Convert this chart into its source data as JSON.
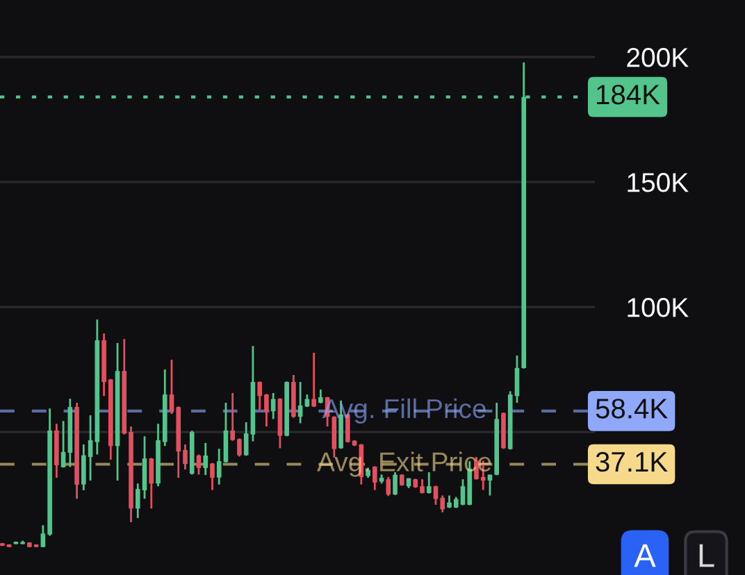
{
  "chart_data": {
    "type": "candlestick",
    "categories": [
      null,
      null,
      null,
      null,
      null,
      null,
      null,
      null,
      null,
      null,
      null,
      null,
      null,
      null,
      null,
      null,
      null,
      null,
      null,
      null,
      null,
      null,
      null,
      null,
      null,
      null,
      null,
      null,
      null,
      null,
      null,
      null,
      null,
      null,
      null,
      null,
      null,
      null,
      null,
      null,
      null,
      null,
      null,
      null,
      null,
      null,
      null,
      null,
      null,
      null,
      null,
      null,
      null,
      null,
      null,
      null,
      null,
      null,
      null,
      null,
      null,
      null,
      null,
      null,
      null,
      null,
      null,
      null,
      null,
      null,
      null,
      null,
      null,
      null,
      null,
      null,
      null,
      null
    ],
    "ohlc": [
      [
        5.5,
        5.6,
        4.4,
        4.5
      ],
      [
        5,
        5.1,
        3.9,
        4
      ],
      [
        5.2,
        6.2,
        5.1,
        6.1
      ],
      [
        5.2,
        6.5,
        5.1,
        6
      ],
      [
        5.8,
        5.9,
        3.9,
        4
      ],
      [
        5,
        5.1,
        3.9,
        4
      ],
      [
        4,
        12.7,
        3.9,
        9.4
      ],
      [
        9,
        59.4,
        8.5,
        50.6
      ],
      [
        50.6,
        53.3,
        31.7,
        36.7
      ],
      [
        35.9,
        54.4,
        35.8,
        42
      ],
      [
        41.7,
        63.3,
        36,
        60
      ],
      [
        60,
        61.7,
        23.3,
        28.9
      ],
      [
        29,
        45,
        26.7,
        40.7
      ],
      [
        40,
        56.7,
        30.6,
        46.7
      ],
      [
        46,
        95,
        41,
        86.7
      ],
      [
        86.7,
        89.4,
        64.4,
        70
      ],
      [
        71,
        71.2,
        38.9,
        44.4
      ],
      [
        44.4,
        85.6,
        30.6,
        74.4
      ],
      [
        74.4,
        87.2,
        49,
        49.4
      ],
      [
        50,
        52.2,
        13.9,
        19.4
      ],
      [
        19.4,
        29.4,
        15.6,
        27.2
      ],
      [
        26.7,
        48.3,
        23.3,
        39.4
      ],
      [
        39.4,
        39.6,
        19.4,
        29.4
      ],
      [
        29.4,
        53.3,
        28.3,
        46.7
      ],
      [
        46,
        75,
        44.4,
        65
      ],
      [
        65,
        78.9,
        57.2,
        58.3
      ],
      [
        60,
        60.2,
        31.7,
        42.2
      ],
      [
        42.8,
        45,
        35,
        37.2
      ],
      [
        33.3,
        50.5,
        33,
        50
      ],
      [
        40.6,
        41,
        33,
        35.6
      ],
      [
        35.6,
        45.6,
        32.8,
        40.6
      ],
      [
        37.4,
        37.6,
        26.8,
        31.7
      ],
      [
        31.8,
        43.3,
        29,
        38.3
      ],
      [
        38,
        61.7,
        37.8,
        50.6
      ],
      [
        50.6,
        65.6,
        46.5,
        46.8
      ],
      [
        47.2,
        47.4,
        40.2,
        40.7
      ],
      [
        40.7,
        53.9,
        40.5,
        49.4
      ],
      [
        49,
        84.4,
        46.3,
        70
      ],
      [
        70,
        70.2,
        58.9,
        64.4
      ],
      [
        65,
        65.2,
        52.2,
        58.3
      ],
      [
        58.3,
        65.6,
        55.2,
        63.2
      ],
      [
        63.3,
        63.5,
        43.5,
        48.5
      ],
      [
        48.5,
        70.2,
        48.3,
        70
      ],
      [
        70,
        72.8,
        55.7,
        56.1
      ],
      [
        56.1,
        70,
        53.5,
        60.6
      ],
      [
        60.2,
        65,
        60,
        63.2
      ],
      [
        63.2,
        81.7,
        60,
        60.2
      ],
      [
        61.7,
        67,
        61.5,
        63.9
      ],
      [
        63.9,
        64,
        52.2,
        56.1
      ],
      [
        56.1,
        56.3,
        39.8,
        43.2
      ],
      [
        43.5,
        62.6,
        43.3,
        57
      ],
      [
        57,
        57.2,
        45.8,
        46
      ],
      [
        46.5,
        46.7,
        44.4,
        44.6
      ],
      [
        45,
        45.2,
        29,
        32
      ],
      [
        32.4,
        35.7,
        31.7,
        34.8
      ],
      [
        36.1,
        36.3,
        26.8,
        29.8
      ],
      [
        30.2,
        33,
        29.4,
        31.7
      ],
      [
        31.1,
        32,
        24.4,
        25
      ],
      [
        25,
        33.9,
        24.8,
        32.9
      ],
      [
        32.9,
        33.1,
        28.5,
        28.7
      ],
      [
        28.3,
        31.5,
        27.6,
        31.5
      ],
      [
        31.1,
        31.3,
        27.7,
        27.9
      ],
      [
        28.3,
        31.1,
        25.4,
        25.6
      ],
      [
        25.6,
        33.9,
        25.4,
        28.3
      ],
      [
        28.3,
        28.5,
        20.9,
        23.2
      ],
      [
        23.7,
        24.6,
        17.9,
        19.1
      ],
      [
        19.8,
        24.6,
        19.6,
        21.8
      ],
      [
        19.8,
        24,
        19.6,
        23.2
      ],
      [
        20.9,
        31.1,
        20.7,
        28.3
      ],
      [
        20.9,
        38.3,
        20.7,
        35.4
      ],
      [
        38.5,
        40,
        31,
        31.1
      ],
      [
        32,
        38.5,
        26.8,
        30.6
      ],
      [
        30.6,
        33,
        24.6,
        32.9
      ],
      [
        32.9,
        61.7,
        32.7,
        55.2
      ],
      [
        57.6,
        57.8,
        43.3,
        43.5
      ],
      [
        43.2,
        66.3,
        43,
        65
      ],
      [
        64.4,
        80.6,
        61.7,
        75.6
      ],
      [
        75.6,
        197.8,
        75.4,
        184
      ]
    ],
    "ylim": [
      -7.2,
      222.8
    ],
    "yticks": [
      {
        "value": 50,
        "label": null
      },
      {
        "value": 100,
        "label": "100K"
      },
      {
        "value": 150,
        "label": "150K"
      },
      {
        "value": 200,
        "label": "200K"
      }
    ],
    "grid": "y",
    "ref_lines": [
      {
        "axis": "y",
        "value": 184,
        "label": "184K",
        "color": "#53c58c",
        "line_style": "dotted"
      },
      {
        "axis": "y",
        "value": 58.4,
        "label": "58.4K",
        "color": "#8fa8fa",
        "line_style": "dashed"
      },
      {
        "axis": "y",
        "value": 37.1,
        "label": "37.1K",
        "color": "#f6d98b",
        "line_style": "dashed"
      }
    ],
    "annotations": [
      {
        "text": "Avg. Fill Price",
        "y": 58.4
      },
      {
        "text": "Avg. Exit Price",
        "y": 37.1
      },
      "A",
      "L"
    ]
  }
}
